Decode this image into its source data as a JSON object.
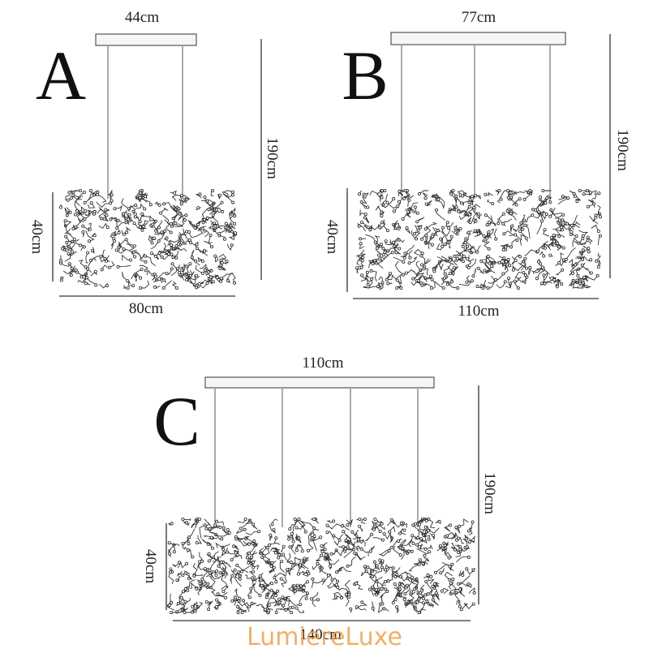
{
  "diagrams": [
    {
      "label": "A",
      "canopy_width": "44cm",
      "height": "190cm",
      "body_height": "40cm",
      "body_width": "80cm"
    },
    {
      "label": "B",
      "canopy_width": "77cm",
      "height": "190cm",
      "body_height": "40cm",
      "body_width": "110cm"
    },
    {
      "label": "C",
      "canopy_width": "110cm",
      "height": "190cm",
      "body_height": "40cm",
      "body_width": "140cm"
    }
  ],
  "watermark": "LumiereLuxe"
}
